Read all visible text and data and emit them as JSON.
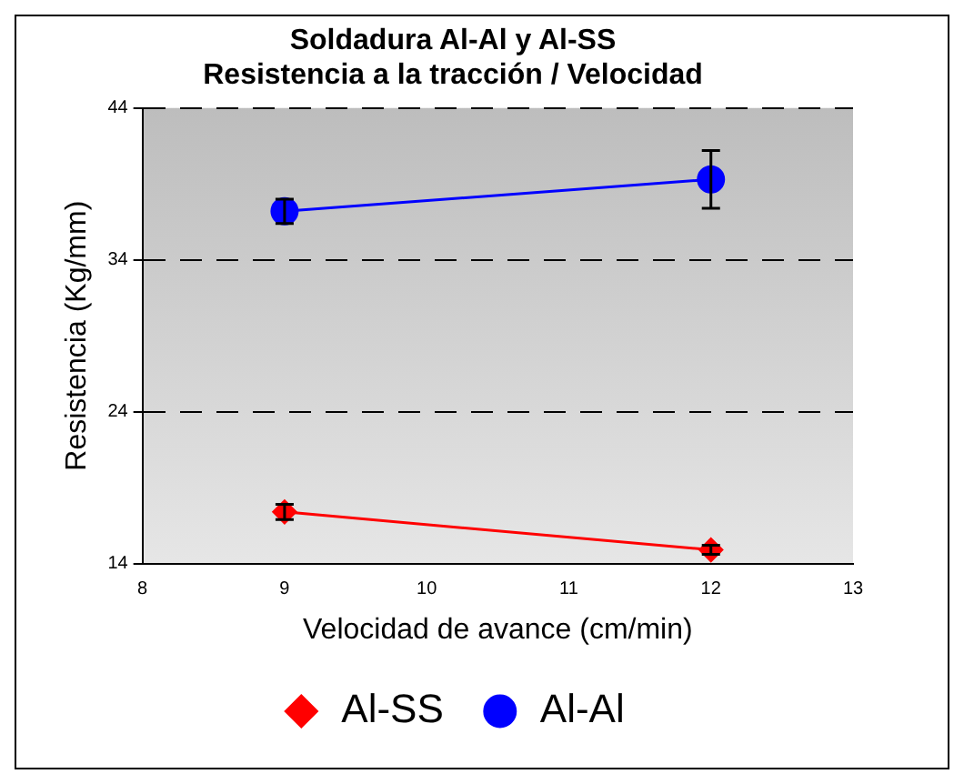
{
  "chart_data": {
    "type": "line",
    "title": "Soldadura Al-Al y Al-SS",
    "subtitle": "Resistencia a la tracción / Velocidad",
    "xlabel": "Velocidad de avance (cm/min)",
    "ylabel": "Resistencia (Kg/mm)",
    "series": [
      {
        "name": "Al-SS",
        "color": "#ff0000",
        "values": [
          17.4,
          14.9
        ],
        "errors": [
          0.5,
          0.3
        ],
        "marker": "diamond"
      },
      {
        "name": "Al-Al",
        "color": "#0000ff",
        "values": [
          37.2,
          39.3
        ],
        "errors": [
          0.8,
          1.9
        ],
        "marker": "circle"
      }
    ],
    "x": [
      9,
      12
    ],
    "xlim": [
      8,
      13
    ],
    "xticks": [
      8,
      9,
      10,
      11,
      12,
      13
    ],
    "ylim": [
      14,
      44
    ],
    "yticks": [
      14,
      24,
      34,
      44
    ],
    "grid": "y",
    "legend": "bottom",
    "line_style": "solid"
  }
}
